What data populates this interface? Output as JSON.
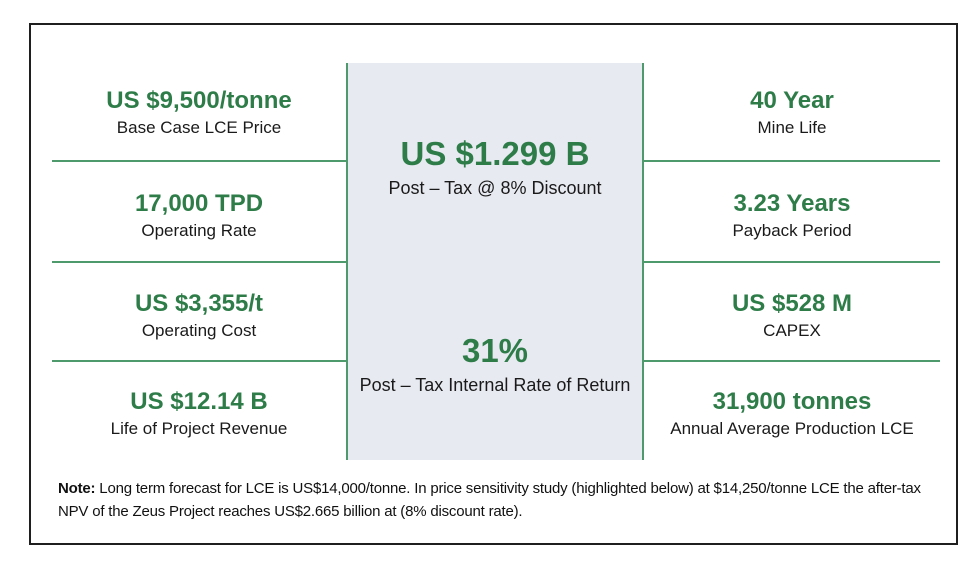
{
  "colors": {
    "accent_green_text": "#2e7d49",
    "line_green": "#4f9a6d",
    "panel_background": "#e8eaf2",
    "outer_border": "#1f1f1f"
  },
  "left_column": [
    {
      "value": "US $9,500/tonne",
      "label": "Base Case LCE Price"
    },
    {
      "value": "17,000 TPD",
      "label": "Operating Rate"
    },
    {
      "value": "US $3,355/t",
      "label": "Operating Cost"
    },
    {
      "value": "US $12.14 B",
      "label": "Life of Project Revenue"
    }
  ],
  "center_column": [
    {
      "value": "US $1.299 B",
      "label": "Post – Tax @ 8% Discount"
    },
    {
      "value": "31%",
      "label": "Post – Tax Internal Rate of Return"
    }
  ],
  "right_column": [
    {
      "value": "40 Year",
      "label": "Mine Life"
    },
    {
      "value": "3.23 Years",
      "label": "Payback Period"
    },
    {
      "value": "US $528 M",
      "label": "CAPEX"
    },
    {
      "value": "31,900 tonnes",
      "label": "Annual Average Production LCE"
    }
  ],
  "note": {
    "prefix": "Note:",
    "text": " Long term forecast for LCE is US$14,000/tonne. In price sensitivity study (highlighted below) at $14,250/tonne LCE the after-tax NPV of the Zeus Project reaches US$2.665 billion at (8% discount rate)."
  }
}
